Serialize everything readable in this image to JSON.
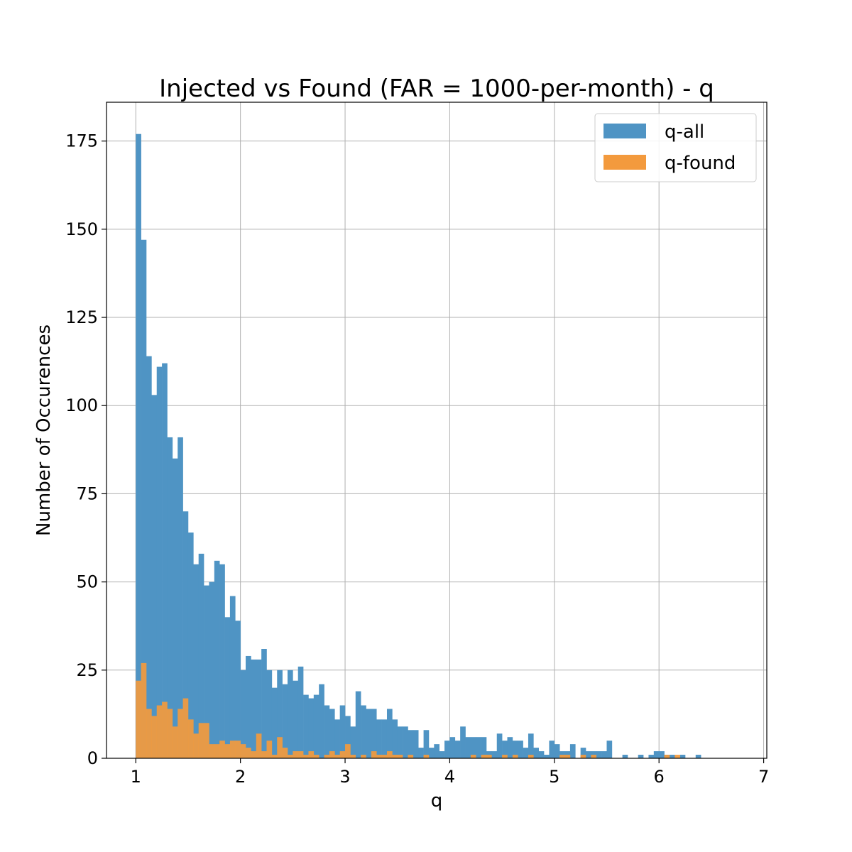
{
  "chart_data": {
    "type": "bar",
    "title": "Injected vs Found (FAR = 1000-per-month) - q",
    "xlabel": "q",
    "ylabel": "Number of Occurences",
    "xlim": [
      0.72,
      7.03
    ],
    "ylim": [
      0,
      186
    ],
    "xticks": [
      1,
      2,
      3,
      4,
      5,
      6,
      7
    ],
    "yticks": [
      0,
      25,
      50,
      75,
      100,
      125,
      150,
      175
    ],
    "grid": true,
    "legend_position": "top-right",
    "bin_start": 1.0,
    "bin_width": 0.05,
    "series": [
      {
        "name": "q-all",
        "color": "#4f94c4",
        "values": [
          177,
          147,
          114,
          103,
          111,
          112,
          91,
          85,
          91,
          70,
          64,
          55,
          58,
          49,
          50,
          56,
          55,
          40,
          46,
          39,
          25,
          29,
          28,
          28,
          31,
          25,
          20,
          25,
          21,
          25,
          22,
          26,
          18,
          17,
          18,
          21,
          15,
          14,
          11,
          15,
          12,
          9,
          19,
          15,
          14,
          14,
          11,
          11,
          14,
          11,
          9,
          9,
          8,
          8,
          3,
          8,
          3,
          4,
          2,
          5,
          6,
          5,
          9,
          6,
          6,
          6,
          6,
          2,
          2,
          7,
          5,
          6,
          5,
          5,
          3,
          7,
          3,
          2,
          1,
          5,
          4,
          2,
          2,
          4,
          0,
          3,
          2,
          2,
          2,
          2,
          5,
          0,
          0,
          1,
          0,
          0,
          1,
          0,
          1,
          2,
          2,
          1,
          1,
          0,
          1,
          0,
          0,
          1
        ]
      },
      {
        "name": "q-found",
        "color": "#f39a3d",
        "values": [
          22,
          27,
          14,
          12,
          15,
          16,
          14,
          9,
          14,
          17,
          11,
          7,
          10,
          10,
          4,
          4,
          5,
          4,
          5,
          5,
          4,
          3,
          2,
          7,
          2,
          5,
          1,
          6,
          3,
          1,
          2,
          2,
          1,
          2,
          1,
          0,
          1,
          2,
          1,
          2,
          4,
          1,
          0,
          1,
          0,
          2,
          1,
          1,
          2,
          1,
          1,
          0,
          1,
          0,
          0,
          1,
          0,
          0,
          0,
          0,
          0,
          0,
          0,
          0,
          1,
          0,
          1,
          1,
          0,
          0,
          1,
          0,
          1,
          0,
          0,
          1,
          0,
          0,
          0,
          0,
          0,
          1,
          1,
          0,
          0,
          1,
          0,
          1,
          0,
          0,
          0,
          0,
          0,
          0,
          0,
          0,
          0,
          0,
          0,
          0,
          0,
          1,
          0,
          1,
          0,
          0,
          0,
          0,
          0,
          0,
          0,
          0
        ]
      }
    ]
  }
}
